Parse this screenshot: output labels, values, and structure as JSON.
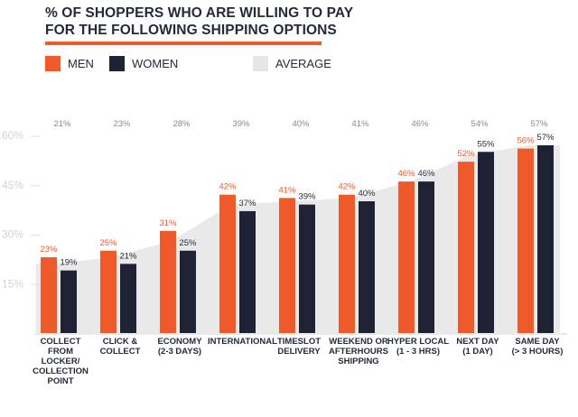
{
  "title": {
    "line1": "% OF SHOPPERS WHO ARE WILLING TO PAY",
    "line2": "FOR THE FOLLOWING SHIPPING OPTIONS"
  },
  "legend": {
    "men": "MEN",
    "women": "WOMEN",
    "average": "AVERAGE"
  },
  "colors": {
    "men": "#ee5a2a",
    "women": "#1f2235",
    "average": "#e9e9e9",
    "title_rule": "#ee5a2a"
  },
  "chart_data": {
    "type": "bar",
    "title": "% OF SHOPPERS WHO ARE WILLING TO PAY FOR THE FOLLOWING SHIPPING OPTIONS",
    "categories": [
      "COLLECT\nFROM\nLOCKER/\nCOLLECTION\nPOINT",
      "CLICK &\nCOLLECT",
      "ECONOMY\n(2-3 DAYS)",
      "INTERNATIONAL",
      "TIMESLOT\nDELIVERY",
      "WEEKEND OR\nAFTERHOURS\nSHIPPING",
      "HYPER LOCAL\n(1 - 3 HRS)",
      "NEXT DAY\n(1 DAY)",
      "SAME DAY\n(> 3 HOURS)"
    ],
    "series": [
      {
        "name": "MEN",
        "values": [
          23,
          25,
          31,
          42,
          41,
          42,
          46,
          52,
          56
        ],
        "labels": [
          "23%",
          "25%",
          "31%",
          "42%",
          "41%",
          "42%",
          "46%",
          "52%",
          "56%"
        ]
      },
      {
        "name": "WOMEN",
        "values": [
          19,
          21,
          25,
          37,
          39,
          40,
          46,
          55,
          57
        ],
        "labels": [
          "19%",
          "21%",
          "25%",
          "37%",
          "39%",
          "40%",
          "46%",
          "55%",
          "57%"
        ]
      },
      {
        "name": "AVERAGE",
        "values": [
          21,
          23,
          28,
          39,
          40,
          41,
          46,
          54,
          57
        ],
        "labels": [
          "21%",
          "23%",
          "28%",
          "39%",
          "40%",
          "41%",
          "46%",
          "54%",
          "57%"
        ]
      }
    ],
    "yticks": [
      {
        "value": 60,
        "label": "60%"
      },
      {
        "value": 45,
        "label": "45%"
      },
      {
        "value": 30,
        "label": "30%"
      },
      {
        "value": 15,
        "label": "15%"
      }
    ],
    "ylim": [
      0,
      60
    ],
    "xlabel": "",
    "ylabel": "",
    "legend_position": "top"
  }
}
